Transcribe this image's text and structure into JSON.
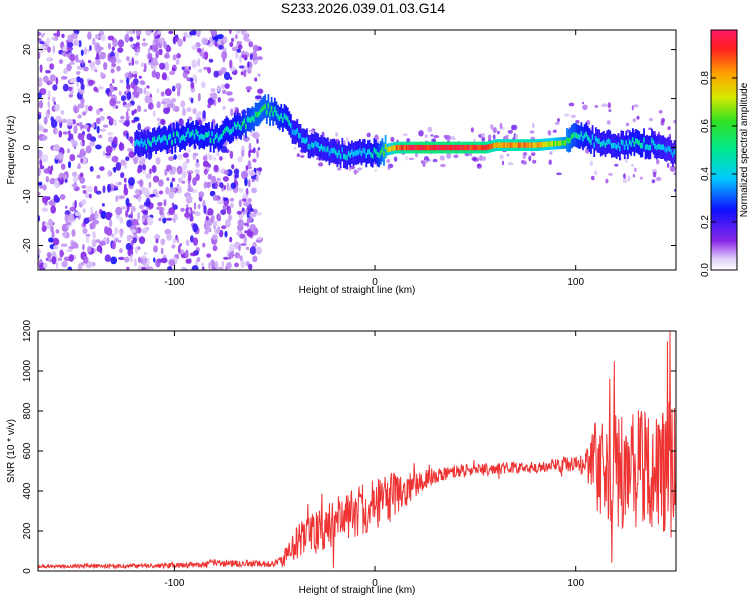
{
  "title": "S233.2026.039.01.03.G14",
  "chart_data": [
    {
      "type": "heatmap",
      "xlabel": "Height of straight line (km)",
      "ylabel": "Frequency (Hz)",
      "xlim": [
        -168,
        150
      ],
      "ylim": [
        -25,
        24
      ],
      "xticks": [
        -100,
        0,
        100
      ],
      "xtick_labels": [
        "-100",
        "0",
        "100"
      ],
      "yticks": [
        -20,
        -10,
        0,
        10,
        20
      ],
      "ytick_labels": [
        "-20",
        "-10",
        "0",
        "10",
        "20"
      ],
      "ridge": {
        "x": [
          -118,
          -100,
          -90,
          -80,
          -70,
          -60,
          -55,
          -50,
          -45,
          -40,
          -35,
          -30,
          -20,
          -10,
          0,
          10,
          20,
          40,
          55,
          60,
          70,
          80,
          95,
          100,
          105,
          110,
          120,
          130,
          140,
          148
        ],
        "frequency": [
          0.5,
          2,
          3,
          2,
          4,
          6,
          8,
          7,
          6,
          3,
          1,
          0,
          -1,
          -1.5,
          -1,
          0,
          0,
          0,
          0,
          0.5,
          0.5,
          0.5,
          1,
          3,
          2,
          1,
          0.5,
          1,
          0.5,
          -1
        ],
        "amplitude": [
          0.4,
          0.45,
          0.45,
          0.45,
          0.45,
          0.55,
          0.55,
          0.5,
          0.45,
          0.4,
          0.4,
          0.4,
          0.4,
          0.4,
          0.45,
          0.85,
          0.95,
          0.95,
          0.9,
          0.8,
          0.85,
          0.8,
          0.6,
          0.5,
          0.45,
          0.4,
          0.4,
          0.45,
          0.4,
          0.35
        ]
      },
      "noise_region_x": [
        -168,
        -57
      ],
      "colorbar": {
        "label": "Normalized spectral amplitude",
        "range": [
          0,
          1
        ],
        "ticks": [
          0.0,
          0.2,
          0.4,
          0.6,
          0.8
        ],
        "tick_labels": [
          "0.0",
          "0.2",
          "0.4",
          "0.6",
          "0.8"
        ],
        "colormap": "rainbow-with-white"
      }
    },
    {
      "type": "line",
      "xlabel": "Height of straight line (km)",
      "ylabel": "SNR (10 * v/v)",
      "xlim": [
        -168,
        150
      ],
      "ylim": [
        0,
        1200
      ],
      "xticks": [
        -100,
        0,
        100
      ],
      "xtick_labels": [
        "-100",
        "0",
        "100"
      ],
      "yticks": [
        0,
        200,
        400,
        600,
        800,
        1000,
        1200
      ],
      "ytick_labels": [
        "0",
        "200",
        "400",
        "600",
        "800",
        "1000",
        "1200"
      ],
      "line_color": "#ee3333",
      "envelope": {
        "x": [
          -168,
          -120,
          -90,
          -80,
          -50,
          -45,
          -40,
          -30,
          -20,
          -10,
          0,
          10,
          20,
          30,
          40,
          60,
          80,
          100,
          105,
          110,
          120,
          130,
          140,
          145,
          150
        ],
        "mean": [
          25,
          25,
          30,
          40,
          35,
          60,
          140,
          190,
          250,
          300,
          330,
          380,
          430,
          480,
          500,
          510,
          520,
          540,
          550,
          520,
          500,
          500,
          520,
          500,
          500
        ],
        "spread": [
          10,
          10,
          15,
          20,
          15,
          40,
          90,
          110,
          120,
          130,
          130,
          120,
          60,
          40,
          30,
          30,
          30,
          40,
          60,
          250,
          280,
          300,
          320,
          380,
          350
        ]
      },
      "peak": {
        "x": 147,
        "y": 1210
      }
    }
  ]
}
